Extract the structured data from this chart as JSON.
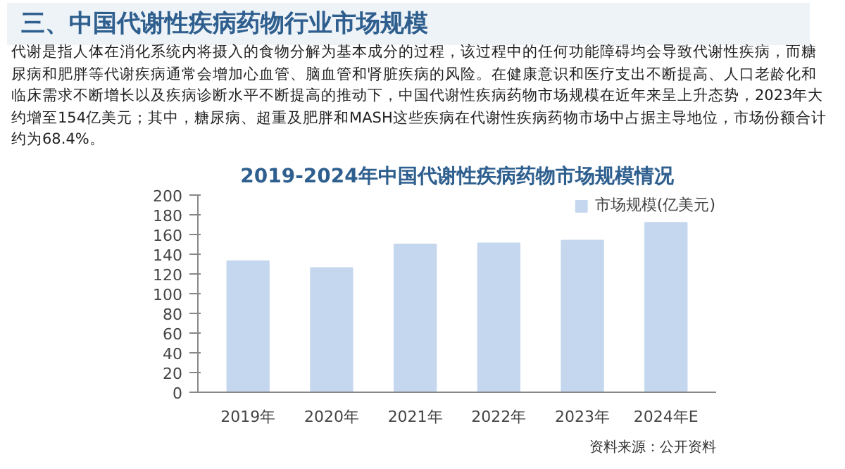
{
  "chart_data": {
    "type": "bar",
    "title": "2019-2024年中国代谢性疾病药物市场规模情况",
    "categories": [
      "2019年",
      "2020年",
      "2021年",
      "2022年",
      "2023年",
      "2024年E"
    ],
    "series": [
      {
        "name": "市场规模(亿美元)",
        "color": "#c5d7ee",
        "values": [
          133,
          126,
          150,
          151,
          154,
          172
        ]
      }
    ],
    "ylim": [
      0,
      200
    ],
    "yticks": [
      0,
      20,
      40,
      60,
      80,
      100,
      120,
      140,
      160,
      180,
      200
    ],
    "grid": false,
    "legend": "top right",
    "annotations": [
      "三、中国代谢性疾病药物行业市场规模",
      "代谢是指人体在消化系统内将摄入的食物分解为基本成分的过程，该过程中的任何功能障碍均会导致代谢性疾病，而糖尿病和肥胖等代谢疾病通常会增加心血管、脑血管和肾脏疾病的风险。在健康意识和医疗支出不断提高、人口老龄化和临床需求不断增长以及疾病诊断水平不断提高的推动下，中国代谢性疾病药物市场规模在近年来呈上升态势，2023年大约增至154亿美元；其中，糖尿病、超重及肥胖和MASH这些疾病在代谢性疾病药物市场中占据主导地位，市场份额合计约为68.4%。",
      "资料来源：公开资料"
    ]
  }
}
